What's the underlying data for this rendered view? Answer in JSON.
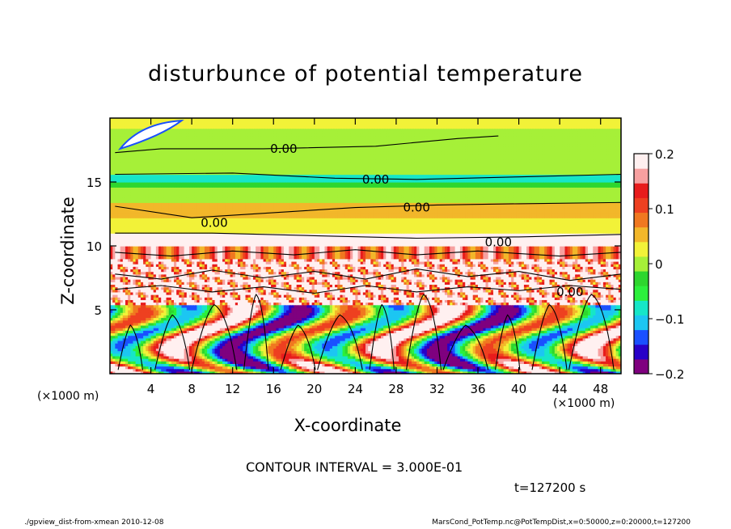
{
  "chart_data": {
    "type": "heatmap",
    "title": "disturbunce of potential temperature",
    "xlabel": "X-coordinate",
    "ylabel": "Z-coordinate",
    "x_unit_left": "(×1000 m)",
    "x_unit_right": "(×1000 m)",
    "xlim": [
      0,
      50
    ],
    "ylim": [
      0,
      20
    ],
    "x_ticks": [
      4,
      8,
      12,
      16,
      20,
      24,
      28,
      32,
      36,
      40,
      44,
      48
    ],
    "y_ticks": [
      5,
      10,
      15
    ],
    "colorbar": {
      "range": [
        -0.2,
        0.2
      ],
      "tick_values": [
        0.2,
        0.1,
        0,
        -0.1,
        -0.2
      ],
      "tick_labels": [
        "0.2",
        "0.1",
        "0",
        "−0.1",
        "−0.2"
      ],
      "colors": [
        "#7f007f",
        "#2800c8",
        "#1a50ff",
        "#1cc6f2",
        "#16e6c8",
        "#2cf03c",
        "#2ed62e",
        "#a6f038",
        "#f2f238",
        "#f2b72a",
        "#f07820",
        "#ee4020",
        "#e81c1c",
        "#f7a0a0",
        "#fff0f0"
      ]
    },
    "contour_labels": [
      {
        "text": "0.00",
        "x": 17.0,
        "z": 17.6
      },
      {
        "text": "0.00",
        "x": 26.0,
        "z": 15.2
      },
      {
        "text": "0.00",
        "x": 30.0,
        "z": 13.0
      },
      {
        "text": "0.00",
        "x": 10.2,
        "z": 11.8
      },
      {
        "text": "0.00",
        "x": 38.0,
        "z": 10.3
      },
      {
        "text": "0.00",
        "x": 45.0,
        "z": 6.4
      }
    ],
    "contour_interval": "CONTOUR INTERVAL = 3.000E-01",
    "time": "t=127200 s"
  },
  "footer": {
    "left": "./gpview_dist-from-xmean  2010-12-08",
    "right": "MarsCond_PotTemp.nc@PotTempDist,x=0:50000,z=0:20000,t=127200"
  }
}
